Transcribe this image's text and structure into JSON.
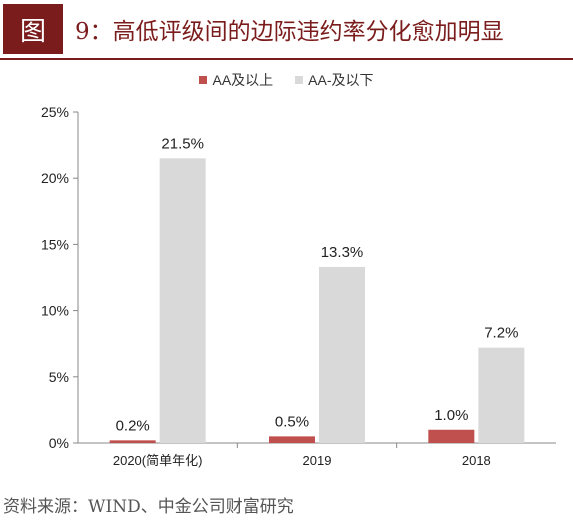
{
  "header": {
    "badge": "图",
    "title": "9：高低评级间的边际违约率分化愈加明显"
  },
  "source": "资料来源：WIND、中金公司财富研究",
  "colors": {
    "accent": "#7b1c1c",
    "series_aa": "#c0504d",
    "series_aa_minus": "#d9d9d9"
  },
  "chart_data": {
    "type": "bar",
    "categories": [
      "2020(简单年化)",
      "2019",
      "2018"
    ],
    "series": [
      {
        "name": "AA及以上",
        "values": [
          0.2,
          0.5,
          1.0
        ]
      },
      {
        "name": "AA-及以下",
        "values": [
          21.5,
          13.3,
          7.2
        ]
      }
    ],
    "data_labels": [
      [
        "0.2%",
        "0.5%",
        "1.0%"
      ],
      [
        "21.5%",
        "13.3%",
        "7.2%"
      ]
    ],
    "yticks": [
      "0%",
      "5%",
      "10%",
      "15%",
      "20%",
      "25%"
    ],
    "ylim": [
      0,
      25
    ],
    "legend_position": "top-center",
    "grid": false
  }
}
